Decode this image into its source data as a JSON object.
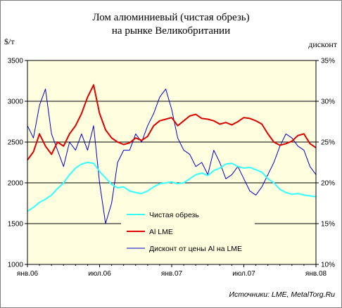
{
  "chart_data": {
    "type": "line",
    "title": "Лом алюминиевый (чистая обрезь)",
    "subtitle": "на рынке Великобритании",
    "ylabel_left": "$/т",
    "ylabel_right": "дисконт",
    "source": "Источники: LME, MetalTorg.Ru",
    "ylim_left": [
      1000,
      3500
    ],
    "ylim_right": [
      10,
      35
    ],
    "yticks_left": [
      "1000",
      "1500",
      "2000",
      "2500",
      "3000",
      "3500"
    ],
    "yticks_right": [
      "10%",
      "15%",
      "20%",
      "25%",
      "30%",
      "35%"
    ],
    "gridlines_left": [
      1500,
      2000,
      2500,
      3000
    ],
    "xtick_labels": [
      "янв.06",
      "июл.06",
      "янв.07",
      "июл.07",
      "янв.08"
    ],
    "x_months": [
      0,
      24
    ],
    "legend_position": "center",
    "colors": {
      "background": "#ffffe0",
      "grid": "#000000",
      "scrap": "#33ffff",
      "lme": "#e00000",
      "discount": "#0000c8"
    },
    "series": [
      {
        "name": "Чистая обрезь",
        "axis": "left",
        "color": "#33ffff",
        "x": [
          0,
          0.5,
          1,
          1.5,
          2,
          2.5,
          3,
          3.5,
          4,
          4.5,
          5,
          5.5,
          6,
          6.5,
          7,
          7.5,
          8,
          8.5,
          9,
          9.5,
          10,
          10.5,
          11,
          11.5,
          12,
          12.5,
          13,
          13.5,
          14,
          14.5,
          15,
          15.5,
          16,
          16.5,
          17,
          17.5,
          18,
          18.5,
          19,
          19.5,
          20,
          20.5,
          21,
          21.5,
          22,
          22.5,
          23,
          23.5,
          24
        ],
        "values": [
          1650,
          1700,
          1760,
          1800,
          1850,
          1930,
          2000,
          2100,
          2180,
          2230,
          2250,
          2240,
          2140,
          2060,
          1980,
          1940,
          1950,
          1900,
          1880,
          1870,
          1900,
          1950,
          1990,
          2000,
          2010,
          1990,
          2000,
          2050,
          2100,
          2120,
          2090,
          2150,
          2180,
          2230,
          2240,
          2200,
          2180,
          2190,
          2160,
          2130,
          2050,
          2000,
          1920,
          1880,
          1860,
          1870,
          1850,
          1840,
          1830
        ]
      },
      {
        "name": "Al LME",
        "axis": "left",
        "color": "#e00000",
        "x": [
          0,
          0.5,
          1,
          1.5,
          2,
          2.5,
          3,
          3.5,
          4,
          4.5,
          5,
          5.5,
          6,
          6.5,
          7,
          7.5,
          8,
          8.5,
          9,
          9.5,
          10,
          10.5,
          11,
          11.5,
          12,
          12.5,
          13,
          13.5,
          14,
          14.5,
          15,
          15.5,
          16,
          16.5,
          17,
          17.5,
          18,
          18.5,
          19,
          19.5,
          20,
          20.5,
          21,
          21.5,
          22,
          22.5,
          23,
          23.5,
          24
        ],
        "values": [
          2280,
          2380,
          2600,
          2450,
          2350,
          2500,
          2450,
          2600,
          2700,
          2850,
          3050,
          3200,
          2850,
          2650,
          2550,
          2500,
          2470,
          2490,
          2550,
          2520,
          2570,
          2700,
          2760,
          2780,
          2800,
          2700,
          2760,
          2820,
          2840,
          2790,
          2780,
          2760,
          2720,
          2740,
          2710,
          2750,
          2800,
          2790,
          2760,
          2720,
          2600,
          2500,
          2460,
          2480,
          2510,
          2580,
          2600,
          2480,
          2430
        ]
      },
      {
        "name": "Дисконт от цены Al на LME",
        "axis": "right",
        "color": "#0000c8",
        "x": [
          0,
          0.5,
          1,
          1.5,
          2,
          2.5,
          3,
          3.5,
          4,
          4.5,
          5,
          5.5,
          6,
          6.5,
          7,
          7.5,
          8,
          8.5,
          9,
          9.5,
          10,
          10.5,
          11,
          11.5,
          12,
          12.5,
          13,
          13.5,
          14,
          14.5,
          15,
          15.5,
          16,
          16.5,
          17,
          17.5,
          18,
          18.5,
          19,
          19.5,
          20,
          20.5,
          21,
          21.5,
          22,
          22.5,
          23,
          23.5,
          24
        ],
        "values": [
          27,
          25.5,
          29.5,
          31.5,
          26,
          24,
          22,
          25,
          24,
          26,
          24,
          27,
          20,
          15,
          17.5,
          22.5,
          24,
          24,
          26,
          25,
          27,
          28.5,
          30.5,
          31.5,
          29,
          25.5,
          24,
          23.5,
          22,
          22.5,
          21,
          24,
          22.5,
          20.5,
          21,
          22,
          20.5,
          19,
          18.5,
          19.5,
          21,
          22.5,
          24.5,
          26,
          25.5,
          24.5,
          24,
          22,
          21
        ]
      }
    ]
  }
}
